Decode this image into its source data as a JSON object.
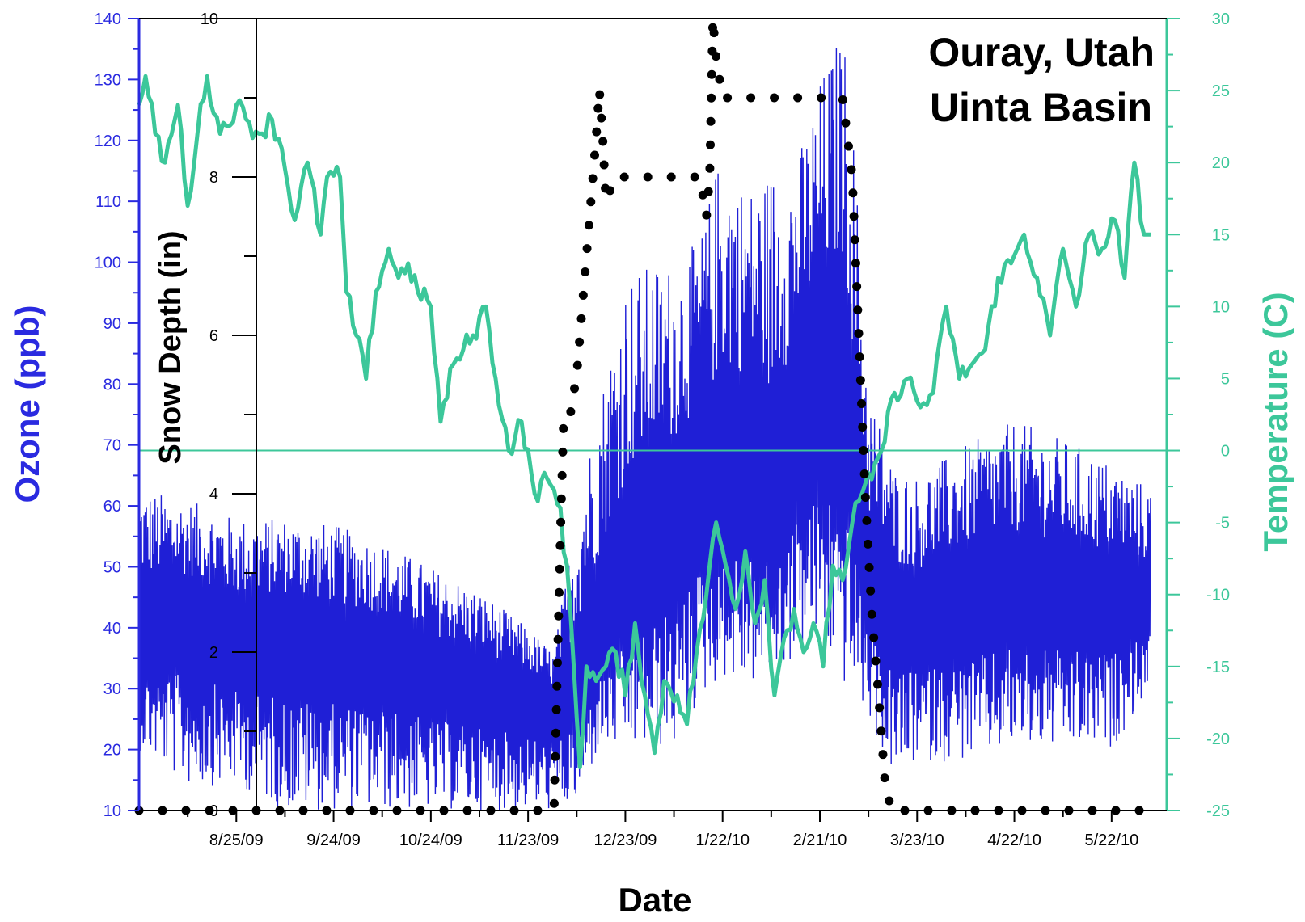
{
  "colors": {
    "ozone": "#1f1fd6",
    "ozone_axis": "#2a2ae0",
    "temperature": "#3cc79a",
    "snow": "#000000",
    "frame": "#000000"
  },
  "chart_data": {
    "type": "line",
    "title": "Ouray, Utah",
    "subtitle": "Uinta Basin",
    "xlabel": "Date",
    "x_ticks": [
      "8/25/09",
      "9/24/09",
      "10/24/09",
      "11/23/09",
      "12/23/09",
      "1/22/10",
      "2/21/10",
      "3/23/10",
      "4/22/10",
      "5/22/10"
    ],
    "x_range": [
      "7/26/09",
      "6/8/10"
    ],
    "grid": false,
    "axes": {
      "ozone": {
        "label": "Ozone (ppb)",
        "side": "left",
        "ylim": [
          10,
          140
        ],
        "ticks": [
          "10",
          "20",
          "30",
          "40",
          "50",
          "60",
          "70",
          "80",
          "90",
          "100",
          "110",
          "120",
          "130",
          "140"
        ]
      },
      "snow": {
        "label": "Snow Depth (in)",
        "side": "inner-left",
        "ylim": [
          0,
          10
        ],
        "ticks": [
          "0",
          "2",
          "4",
          "6",
          "8",
          "10"
        ]
      },
      "temperature": {
        "label": "Temperature (C)",
        "side": "right",
        "ylim": [
          -25,
          30
        ],
        "ticks": [
          "-25",
          "-20",
          "-15",
          "-10",
          "-5",
          "0",
          "5",
          "10",
          "15",
          "20",
          "25",
          "30"
        ]
      }
    },
    "reference_line": {
      "axis": "temperature",
      "value": 0
    },
    "series": [
      {
        "name": "Temperature (C)",
        "axis": "temperature",
        "style": "line",
        "x": [
          "7/26/09",
          "7/28/09",
          "7/31/09",
          "8/3/09",
          "8/7/09",
          "8/10/09",
          "8/13/09",
          "8/16/09",
          "8/20/09",
          "8/25/09",
          "8/28/09",
          "9/1/09",
          "9/5/09",
          "9/8/09",
          "9/12/09",
          "9/16/09",
          "9/20/09",
          "9/22/09",
          "9/26/09",
          "9/28/09",
          "10/1/09",
          "10/4/09",
          "10/7/09",
          "10/11/09",
          "10/14/09",
          "10/17/09",
          "10/20/09",
          "10/24/09",
          "10/27/09",
          "10/31/09",
          "11/3/09",
          "11/6/09",
          "11/10/09",
          "11/13/09",
          "11/17/09",
          "11/21/09",
          "11/25/09",
          "11/29/09",
          "12/3/09",
          "12/6/09",
          "12/9/09",
          "12/11/09",
          "12/14/09",
          "12/17/09",
          "12/20/09",
          "12/23/09",
          "12/26/09",
          "12/29/09",
          "1/1/10",
          "1/4/10",
          "1/8/10",
          "1/11/10",
          "1/14/10",
          "1/17/10",
          "1/20/10",
          "1/23/10",
          "1/26/10",
          "1/29/10",
          "2/1/10",
          "2/4/10",
          "2/7/10",
          "2/10/10",
          "2/13/10",
          "2/16/10",
          "2/19/10",
          "2/22/10",
          "2/25/10",
          "2/28/10",
          "3/3/10",
          "3/6/10",
          "3/9/10",
          "3/12/10",
          "3/16/10",
          "3/20/10",
          "3/24/10",
          "3/28/10",
          "4/1/10",
          "4/5/10",
          "4/9/10",
          "4/13/10",
          "4/17/10",
          "4/21/10",
          "4/25/10",
          "4/29/10",
          "5/3/10",
          "5/7/10",
          "5/11/10",
          "5/15/10",
          "5/19/10",
          "5/23/10",
          "5/26/10",
          "5/29/10",
          "6/1/10",
          "6/3/10"
        ],
        "values": [
          24,
          26,
          22,
          20,
          24,
          17,
          22,
          26,
          22,
          24,
          23,
          22,
          23,
          21,
          16,
          20,
          15,
          19,
          19,
          11,
          8,
          5,
          11,
          14,
          12,
          13,
          11,
          10,
          2,
          6,
          7,
          8,
          10,
          5,
          0,
          2,
          -3,
          -2,
          -4,
          -11,
          -22,
          -15,
          -16,
          -15,
          -14,
          -17,
          -12,
          -17,
          -21,
          -16,
          -17,
          -19,
          -14,
          -10,
          -5,
          -8,
          -11,
          -7,
          -12,
          -9,
          -17,
          -13,
          -11,
          -14,
          -12,
          -15,
          -8,
          -9,
          -5,
          -3,
          -2,
          0,
          4,
          5,
          3,
          4,
          10,
          5,
          6,
          7,
          12,
          13,
          15,
          12,
          8,
          14,
          10,
          15,
          14,
          16,
          12,
          20,
          15,
          15
        ]
      },
      {
        "name": "Snow Depth (in)",
        "axis": "snow",
        "style": "dotted",
        "x": [
          "7/26/09",
          "12/1/09",
          "12/3/09",
          "12/4/09",
          "12/6/09",
          "12/8/09",
          "12/10/09",
          "12/12/09",
          "12/14/09",
          "12/15/09",
          "12/16/09",
          "12/17/09",
          "12/20/09",
          "1/15/10",
          "1/17/10",
          "1/18/10",
          "1/19/10",
          "1/20/10",
          "1/22/10",
          "1/25/10",
          "2/28/10",
          "3/3/10",
          "3/5/10",
          "3/7/10",
          "3/9/10",
          "3/11/10",
          "3/13/10",
          "3/15/10",
          "6/3/10"
        ],
        "values": [
          0,
          0,
          3.5,
          5,
          5,
          5.5,
          6.5,
          7.5,
          8.5,
          9.1,
          8.5,
          7.7,
          8,
          8,
          7.5,
          8,
          10,
          9.5,
          9,
          9,
          9,
          8,
          6,
          4,
          2.5,
          1.5,
          0.4,
          0,
          0
        ]
      },
      {
        "name": "Ozone (ppb)",
        "axis": "ozone",
        "style": "line-noisy",
        "x": [
          "7/26/09",
          "8/10/09",
          "8/25/09",
          "9/9/09",
          "9/24/09",
          "10/9/09",
          "10/24/09",
          "11/8/09",
          "11/23/09",
          "12/1/09",
          "12/8/09",
          "12/15/09",
          "12/23/09",
          "1/1/10",
          "1/8/10",
          "1/15/10",
          "1/22/10",
          "1/29/10",
          "2/7/10",
          "2/14/10",
          "2/21/10",
          "2/28/10",
          "3/3/10",
          "3/8/10",
          "3/16/10",
          "3/23/10",
          "4/7/10",
          "4/22/10",
          "5/7/10",
          "5/22/10",
          "6/3/10"
        ],
        "values": [
          40,
          42,
          38,
          39,
          37,
          36,
          33,
          31,
          29,
          27,
          30,
          38,
          46,
          52,
          56,
          62,
          60,
          66,
          58,
          72,
          75,
          80,
          66,
          46,
          42,
          41,
          44,
          46,
          45,
          44,
          44
        ],
        "envelope": [
          [
            20,
            63
          ],
          [
            14,
            61
          ],
          [
            14,
            58
          ],
          [
            10,
            58
          ],
          [
            10,
            57
          ],
          [
            10,
            54
          ],
          [
            10,
            50
          ],
          [
            10,
            46
          ],
          [
            10,
            40
          ],
          [
            10,
            36
          ],
          [
            11,
            60
          ],
          [
            20,
            78
          ],
          [
            20,
            98
          ],
          [
            20,
            100
          ],
          [
            20,
            100
          ],
          [
            28,
            104
          ],
          [
            32,
            120
          ],
          [
            30,
            112
          ],
          [
            32,
            116
          ],
          [
            35,
            117
          ],
          [
            38,
            130
          ],
          [
            30,
            139
          ],
          [
            30,
            125
          ],
          [
            25,
            80
          ],
          [
            15,
            66
          ],
          [
            18,
            65
          ],
          [
            18,
            70
          ],
          [
            20,
            74
          ],
          [
            20,
            71
          ],
          [
            20,
            67
          ],
          [
            30,
            63
          ]
        ]
      }
    ]
  }
}
